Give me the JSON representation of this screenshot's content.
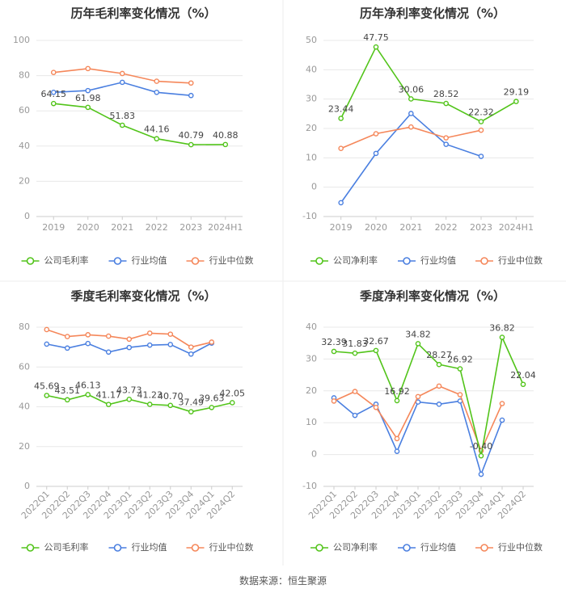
{
  "page": {
    "source_label": "数据来源：恒生聚源"
  },
  "colors": {
    "company": "#52c41a",
    "industry_avg": "#4a7fe0",
    "industry_median": "#f5875a",
    "axis": "#999999",
    "grid": "#e8e8e8",
    "text": "#333333",
    "label": "#444444"
  },
  "chart_data": [
    {
      "type": "line",
      "title": "历年毛利率变化情况（%）",
      "categories": [
        "2019",
        "2020",
        "2021",
        "2022",
        "2023",
        "2024H1"
      ],
      "ylim": [
        0,
        100
      ],
      "yticks": [
        0,
        20,
        40,
        60,
        80,
        100
      ],
      "grid": true,
      "rotate_x_labels": false,
      "legend_position": "bottom",
      "series": [
        {
          "name": "公司毛利率",
          "role": "company",
          "values": [
            64.15,
            61.98,
            51.83,
            44.16,
            40.79,
            40.88
          ],
          "labels": [
            "64.15",
            "61.98",
            "51.83",
            "44.16",
            "40.79",
            "40.88"
          ]
        },
        {
          "name": "行业均值",
          "role": "industry_avg",
          "values": [
            70.5,
            71.5,
            76.2,
            70.5,
            68.7,
            null
          ]
        },
        {
          "name": "行业中位数",
          "role": "industry_median",
          "values": [
            81.8,
            84.0,
            81.2,
            76.8,
            75.8,
            null
          ]
        }
      ]
    },
    {
      "type": "line",
      "title": "历年净利率变化情况（%）",
      "categories": [
        "2019",
        "2020",
        "2021",
        "2022",
        "2023",
        "2024H1"
      ],
      "ylim": [
        -10,
        50
      ],
      "yticks": [
        -10,
        0,
        10,
        20,
        30,
        40,
        50
      ],
      "grid": true,
      "rotate_x_labels": false,
      "legend_position": "bottom",
      "series": [
        {
          "name": "公司净利率",
          "role": "company",
          "values": [
            23.44,
            47.75,
            30.06,
            28.52,
            22.32,
            29.19
          ],
          "labels": [
            "23.44",
            "47.75",
            "30.06",
            "28.52",
            "22.32",
            "29.19"
          ]
        },
        {
          "name": "行业均值",
          "role": "industry_avg",
          "values": [
            -5.3,
            11.5,
            25.1,
            14.6,
            10.5,
            null
          ]
        },
        {
          "name": "行业中位数",
          "role": "industry_median",
          "values": [
            13.2,
            18.2,
            20.5,
            16.8,
            19.4,
            null
          ]
        }
      ]
    },
    {
      "type": "line",
      "title": "季度毛利率变化情况（%）",
      "categories": [
        "2022Q1",
        "2022Q2",
        "2022Q3",
        "2022Q4",
        "2023Q1",
        "2023Q2",
        "2023Q3",
        "2023Q4",
        "2024Q1",
        "2024Q2"
      ],
      "ylim": [
        0,
        80
      ],
      "yticks": [
        0,
        20,
        40,
        60,
        80
      ],
      "grid": true,
      "rotate_x_labels": true,
      "legend_position": "bottom",
      "series": [
        {
          "name": "公司毛利率",
          "role": "company",
          "values": [
            45.69,
            43.51,
            46.13,
            41.17,
            43.73,
            41.23,
            40.7,
            37.49,
            39.63,
            42.05
          ],
          "labels": [
            "45.69",
            "43.51",
            "46.13",
            "41.17",
            "43.73",
            "41.23",
            "40.70",
            "37.49",
            "39.63",
            "42.05"
          ]
        },
        {
          "name": "行业均值",
          "role": "industry_avg",
          "values": [
            71.5,
            69.5,
            71.8,
            67.5,
            69.8,
            71.0,
            71.3,
            66.5,
            72.0,
            null
          ]
        },
        {
          "name": "行业中位数",
          "role": "industry_median",
          "values": [
            78.8,
            75.3,
            76.2,
            75.5,
            74.0,
            77.0,
            76.5,
            70.0,
            72.5,
            null
          ]
        }
      ]
    },
    {
      "type": "line",
      "title": "季度净利率变化情况（%）",
      "categories": [
        "2022Q1",
        "2022Q2",
        "2022Q3",
        "2022Q4",
        "2023Q1",
        "2023Q2",
        "2023Q3",
        "2023Q4",
        "2024Q1",
        "2024Q2"
      ],
      "ylim": [
        -10,
        40
      ],
      "yticks": [
        -10,
        0,
        10,
        20,
        30,
        40
      ],
      "grid": true,
      "rotate_x_labels": true,
      "legend_position": "bottom",
      "series": [
        {
          "name": "公司净利率",
          "role": "company",
          "values": [
            32.39,
            31.83,
            32.67,
            16.92,
            34.82,
            28.27,
            26.92,
            -0.4,
            36.82,
            22.04
          ],
          "labels": [
            "32.39",
            "31.83",
            "32.67",
            "16.92",
            "34.82",
            "28.27",
            "26.92",
            "-0.40",
            "36.82",
            "22.04"
          ]
        },
        {
          "name": "行业均值",
          "role": "industry_avg",
          "values": [
            17.8,
            12.3,
            15.8,
            1.0,
            16.5,
            15.8,
            16.8,
            -6.2,
            10.8,
            null
          ]
        },
        {
          "name": "行业中位数",
          "role": "industry_median",
          "values": [
            16.8,
            19.8,
            14.8,
            5.0,
            18.2,
            21.5,
            18.8,
            1.2,
            16.0,
            null
          ]
        }
      ]
    }
  ]
}
